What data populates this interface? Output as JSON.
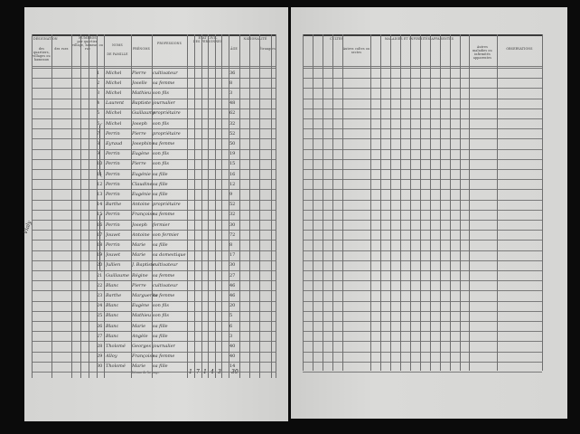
{
  "left": {
    "headers": {
      "designation": "DÉSIGNATION",
      "designation_sub1": "des quartiers, villages ou hameaux",
      "designation_sub2": "des rues",
      "numeros": "NUMÉROS",
      "numeros_sub": "par quartier, village, hameau ou rue",
      "noms": "NOMS",
      "noms_sub": "DE FAMILLE",
      "prenoms": "PRÉNOMS",
      "professions": "PROFESSIONS",
      "etat_civil": "ÉTAT CIVIL",
      "etat_civil_sub": "DES PERSONNES",
      "age": "ÂGE",
      "nationalite": "NATIONALITÉ",
      "nationalite_sub": "Étrangers"
    },
    "rows": [
      {
        "num": "1",
        "nom": "Michel",
        "prenom": "Pierre",
        "profession": "cultivateur",
        "age": "36"
      },
      {
        "num": "2",
        "nom": "Michel",
        "prenom": "Joselle",
        "profession": "sa femme",
        "age": "8"
      },
      {
        "num": "3",
        "nom": "Michel",
        "prenom": "Mathieu",
        "profession": "son fils",
        "age": "3"
      },
      {
        "num": "4",
        "nom": "Laurent",
        "prenom": "Baptiste",
        "profession": "journalier",
        "age": "48"
      },
      {
        "num": "5",
        "nom": "Michel",
        "prenom": "Guillaume",
        "profession": "propriétaire",
        "age": "62"
      },
      {
        "num": "6",
        "nom": "Michel",
        "prenom": "Joseph",
        "profession": "son fils",
        "age": "32"
      },
      {
        "num": "7",
        "nom": "Perrin",
        "prenom": "Pierre",
        "profession": "propriétaire",
        "age": "52"
      },
      {
        "num": "8",
        "nom": "Eyraud",
        "prenom": "Josephine",
        "profession": "sa femme",
        "age": "50"
      },
      {
        "num": "9",
        "nom": "Perrin",
        "prenom": "Eugène",
        "profession": "son fils",
        "age": "19"
      },
      {
        "num": "10",
        "nom": "Perrin",
        "prenom": "Pierre",
        "profession": "son fils",
        "age": "15"
      },
      {
        "num": "11",
        "nom": "Perrin",
        "prenom": "Eugénie",
        "profession": "sa fille",
        "age": "16"
      },
      {
        "num": "12",
        "nom": "Perrin",
        "prenom": "Claudine",
        "profession": "sa fille",
        "age": "12"
      },
      {
        "num": "13",
        "nom": "Perrin",
        "prenom": "Eugénie",
        "profession": "sa fille",
        "age": "9"
      },
      {
        "num": "14",
        "nom": "Barthe",
        "prenom": "Antoine",
        "profession": "propriétaire",
        "age": "52"
      },
      {
        "num": "15",
        "nom": "Perrin",
        "prenom": "Françoise",
        "profession": "sa femme",
        "age": "32"
      },
      {
        "num": "16",
        "nom": "Perrin",
        "prenom": "Joseph",
        "profession": "fermier",
        "age": "30"
      },
      {
        "num": "17",
        "nom": "Jouvet",
        "prenom": "Antoine",
        "profession": "son fermier",
        "age": "72"
      },
      {
        "num": "18",
        "nom": "Perrin",
        "prenom": "Marie",
        "profession": "sa fille",
        "age": "8"
      },
      {
        "num": "19",
        "nom": "Jouvet",
        "prenom": "Marie",
        "profession": "sa domestique",
        "age": "17"
      },
      {
        "num": "20",
        "nom": "Jullien",
        "prenom": "J. Baptiste",
        "profession": "cultivateur",
        "age": "30"
      },
      {
        "num": "21",
        "nom": "Guillaume",
        "prenom": "Régine",
        "profession": "sa femme",
        "age": "27"
      },
      {
        "num": "22",
        "nom": "Blanc",
        "prenom": "Pierre",
        "profession": "cultivateur",
        "age": "46"
      },
      {
        "num": "23",
        "nom": "Barthe",
        "prenom": "Marguerite",
        "profession": "sa femme",
        "age": "46"
      },
      {
        "num": "24",
        "nom": "Blanc",
        "prenom": "Eugène",
        "profession": "son fils",
        "age": "20"
      },
      {
        "num": "25",
        "nom": "Blanc",
        "prenom": "Mathieu",
        "profession": "son fils",
        "age": "5"
      },
      {
        "num": "26",
        "nom": "Blanc",
        "prenom": "Marie",
        "profession": "sa fille",
        "age": "6"
      },
      {
        "num": "27",
        "nom": "Blanc",
        "prenom": "Angèle",
        "profession": "sa fille",
        "age": "3"
      },
      {
        "num": "28",
        "nom": "Tholomé",
        "prenom": "Georges",
        "profession": "journalier",
        "age": "40"
      },
      {
        "num": "29",
        "nom": "Alloy",
        "prenom": "Françoise",
        "profession": "sa femme",
        "age": "40"
      },
      {
        "num": "30",
        "nom": "Tholomé",
        "prenom": "Marie",
        "profession": "sa fille",
        "age": "14"
      }
    ],
    "totals_label": "Totaux de la page",
    "totals": [
      "1",
      "7",
      "1",
      "4",
      "3"
    ],
    "totals_age": "30"
  },
  "right": {
    "headers": {
      "cultes": "CULTES",
      "cultes_other": "Autres cultes ou sectes",
      "maladies": "MALADIES ET INFIRMITÉS APPARENTES",
      "autres_maladies": "Autres maladies ou infirmités apparentes",
      "observations": "OBSERVATIONS"
    }
  },
  "margin_note": "Vialy"
}
